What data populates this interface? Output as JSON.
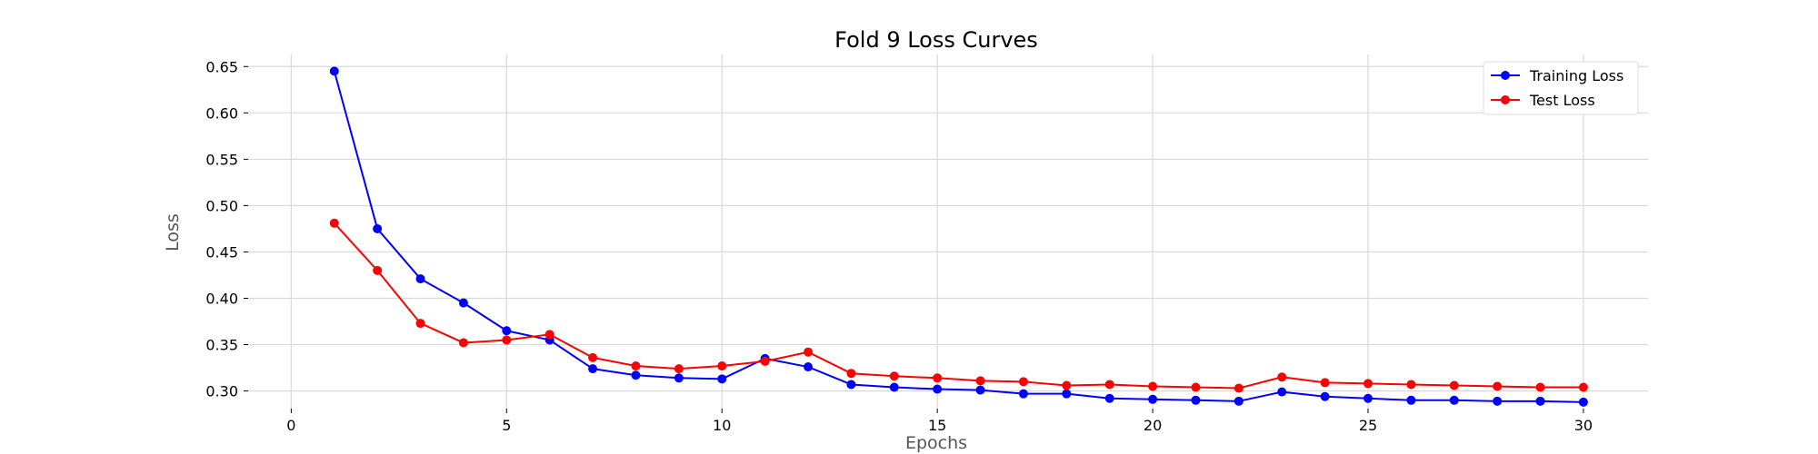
{
  "chart_data": {
    "type": "line",
    "title": "Fold 9 Loss Curves",
    "xlabel": "Epochs",
    "ylabel": "Loss",
    "xlim": [
      -1,
      31.5
    ],
    "ylim": [
      0.281,
      0.663
    ],
    "xticks": [
      0,
      5,
      10,
      15,
      20,
      25,
      30
    ],
    "yticks": [
      0.3,
      0.35,
      0.4,
      0.45,
      0.5,
      0.55,
      0.6,
      0.65
    ],
    "ytick_labels": [
      "0.30",
      "0.35",
      "0.40",
      "0.45",
      "0.50",
      "0.55",
      "0.60",
      "0.65"
    ],
    "grid": true,
    "legend_position": "top-right",
    "x": [
      1,
      2,
      3,
      4,
      5,
      6,
      7,
      8,
      9,
      10,
      11,
      12,
      13,
      14,
      15,
      16,
      17,
      18,
      19,
      20,
      21,
      22,
      23,
      24,
      25,
      26,
      27,
      28,
      29,
      30
    ],
    "series": [
      {
        "name": "Training Loss",
        "color": "#0000ff",
        "values": [
          0.645,
          0.475,
          0.421,
          0.395,
          0.365,
          0.355,
          0.324,
          0.317,
          0.314,
          0.313,
          0.335,
          0.326,
          0.307,
          0.304,
          0.302,
          0.301,
          0.297,
          0.297,
          0.292,
          0.291,
          0.29,
          0.289,
          0.299,
          0.294,
          0.292,
          0.29,
          0.29,
          0.289,
          0.289,
          0.288
        ]
      },
      {
        "name": "Test Loss",
        "color": "#ff0000",
        "values": [
          0.481,
          0.43,
          0.373,
          0.352,
          0.355,
          0.361,
          0.336,
          0.327,
          0.324,
          0.327,
          0.332,
          0.342,
          0.319,
          0.316,
          0.314,
          0.311,
          0.31,
          0.306,
          0.307,
          0.305,
          0.304,
          0.303,
          0.315,
          0.309,
          0.308,
          0.307,
          0.306,
          0.305,
          0.304,
          0.304
        ]
      }
    ]
  }
}
